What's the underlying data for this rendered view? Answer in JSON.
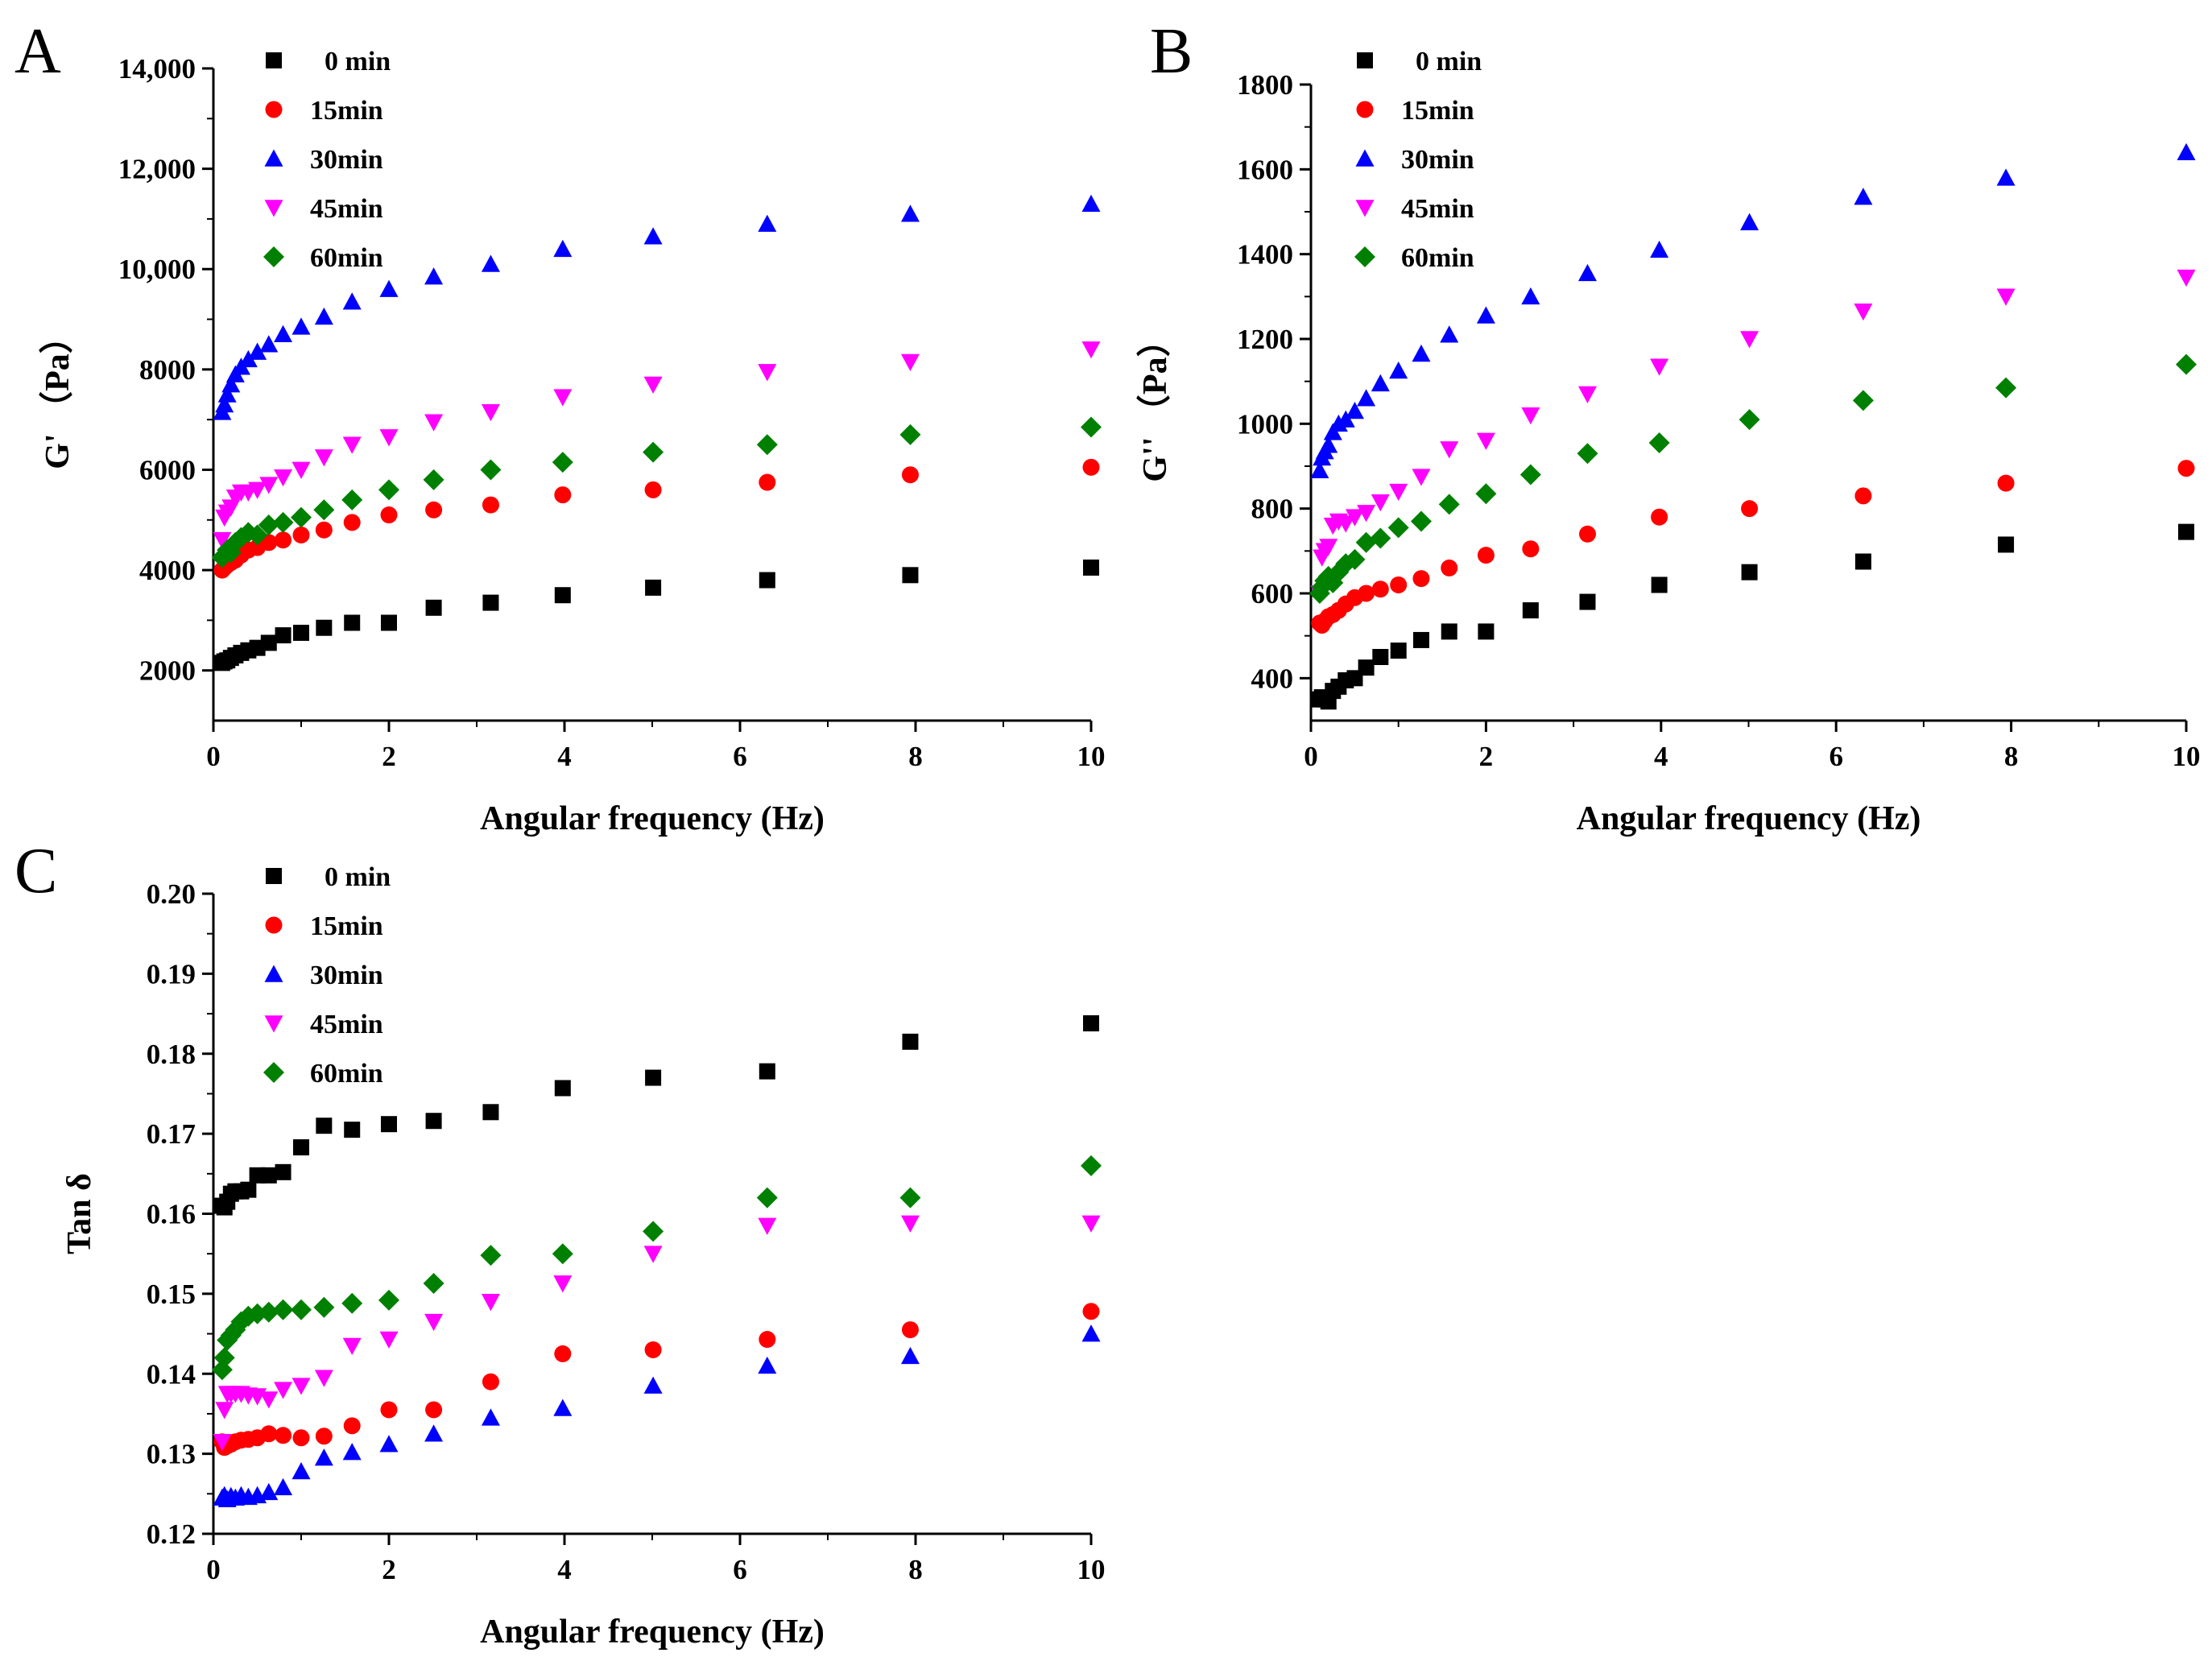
{
  "chart_data": [
    {
      "panel": "A",
      "type": "scatter",
      "xlabel": "Angular frequency (Hz)",
      "ylabel": "G'  （Pa）",
      "xlim": [
        0,
        10
      ],
      "ylim": [
        1000,
        14000
      ],
      "xticks": [
        0,
        2,
        4,
        6,
        8,
        10
      ],
      "yticks": [
        2000,
        4000,
        6000,
        8000,
        10000,
        12000,
        14000
      ],
      "ytick_labels": [
        "2000",
        "4000",
        "6000",
        "8000",
        "10,000",
        "12,000",
        "14,000"
      ],
      "legend": [
        "0 min",
        "15min",
        "30min",
        "45min",
        "60min"
      ],
      "x": [
        0.1,
        0.126,
        0.158,
        0.2,
        0.251,
        0.316,
        0.398,
        0.501,
        0.631,
        0.794,
        1,
        1.26,
        1.58,
        2,
        2.51,
        3.16,
        3.98,
        5.01,
        6.31,
        7.94,
        10
      ],
      "series": [
        {
          "name": "0 min",
          "marker": "square",
          "color": "#000000",
          "values": [
            2150,
            2180,
            2200,
            2250,
            2300,
            2350,
            2400,
            2450,
            2550,
            2700,
            2750,
            2850,
            2950,
            2950,
            3250,
            3350,
            3500,
            3650,
            3800,
            3900,
            4050
          ]
        },
        {
          "name": "15min",
          "marker": "circle",
          "color": "#ff0000",
          "values": [
            4000,
            4050,
            4100,
            4150,
            4200,
            4300,
            4400,
            4450,
            4550,
            4600,
            4700,
            4800,
            4950,
            5100,
            5200,
            5300,
            5500,
            5600,
            5750,
            5900,
            6050
          ]
        },
        {
          "name": "30min",
          "marker": "triangle-up",
          "color": "#0000ff",
          "values": [
            7150,
            7300,
            7500,
            7700,
            7900,
            8050,
            8200,
            8350,
            8500,
            8700,
            8850,
            9050,
            9350,
            9600,
            9850,
            10100,
            10400,
            10650,
            10900,
            11100,
            11300
          ]
        },
        {
          "name": "45min",
          "marker": "triangle-down",
          "color": "#ff00ff",
          "values": [
            4600,
            5050,
            5150,
            5250,
            5450,
            5550,
            5550,
            5600,
            5700,
            5850,
            6000,
            6250,
            6500,
            6650,
            6950,
            7150,
            7450,
            7700,
            7950,
            8150,
            8400
          ]
        },
        {
          "name": "60min",
          "marker": "diamond",
          "color": "#008000",
          "values": [
            4250,
            4300,
            4400,
            4350,
            4550,
            4650,
            4750,
            4700,
            4900,
            4950,
            5050,
            5200,
            5400,
            5600,
            5800,
            6000,
            6150,
            6350,
            6500,
            6700,
            6850
          ]
        }
      ]
    },
    {
      "panel": "B",
      "type": "scatter",
      "xlabel": "Angular frequency (Hz)",
      "ylabel": "G''  （Pa）",
      "xlim": [
        0,
        10
      ],
      "ylim": [
        300,
        1800
      ],
      "xticks": [
        0,
        2,
        4,
        6,
        8,
        10
      ],
      "yticks": [
        400,
        600,
        800,
        1000,
        1200,
        1400,
        1600,
        1800
      ],
      "ytick_labels": [
        "400",
        "600",
        "800",
        "1000",
        "1200",
        "1400",
        "1600",
        "1800"
      ],
      "legend": [
        "0 min",
        "15min",
        "30min",
        "45min",
        "60min"
      ],
      "x": [
        0.1,
        0.126,
        0.158,
        0.2,
        0.251,
        0.316,
        0.398,
        0.501,
        0.631,
        0.794,
        1,
        1.26,
        1.58,
        2,
        2.51,
        3.16,
        3.98,
        5.01,
        6.31,
        7.94,
        10
      ],
      "series": [
        {
          "name": "0 min",
          "marker": "square",
          "color": "#000000",
          "values": [
            350,
            355,
            350,
            345,
            370,
            380,
            395,
            400,
            425,
            450,
            465,
            490,
            510,
            510,
            560,
            580,
            620,
            650,
            675,
            715,
            745
          ]
        },
        {
          "name": "15min",
          "marker": "circle",
          "color": "#ff0000",
          "values": [
            530,
            525,
            535,
            545,
            550,
            560,
            575,
            590,
            600,
            610,
            620,
            635,
            660,
            690,
            705,
            740,
            780,
            800,
            830,
            860,
            895
          ]
        },
        {
          "name": "30min",
          "marker": "triangle-up",
          "color": "#0000ff",
          "values": [
            890,
            920,
            935,
            950,
            980,
            1000,
            1010,
            1030,
            1060,
            1095,
            1125,
            1165,
            1210,
            1255,
            1300,
            1355,
            1410,
            1475,
            1535,
            1580,
            1640
          ]
        },
        {
          "name": "45min",
          "marker": "triangle-down",
          "color": "#ff00ff",
          "values": [
            600,
            685,
            700,
            710,
            760,
            770,
            765,
            780,
            790,
            815,
            840,
            875,
            940,
            960,
            1020,
            1070,
            1135,
            1200,
            1265,
            1300,
            1345
          ]
        },
        {
          "name": "60min",
          "marker": "diamond",
          "color": "#008000",
          "values": [
            600,
            615,
            630,
            640,
            625,
            650,
            670,
            680,
            720,
            730,
            755,
            770,
            810,
            835,
            880,
            930,
            955,
            1010,
            1055,
            1085,
            1140
          ]
        }
      ]
    },
    {
      "panel": "C",
      "type": "scatter",
      "xlabel": "Angular frequency (Hz)",
      "ylabel": "Tan δ",
      "xlim": [
        0,
        10
      ],
      "ylim": [
        0.12,
        0.2
      ],
      "xticks": [
        0,
        2,
        4,
        6,
        8,
        10
      ],
      "yticks": [
        0.12,
        0.13,
        0.14,
        0.15,
        0.16,
        0.17,
        0.18,
        0.19,
        0.2
      ],
      "ytick_labels": [
        "0.12",
        "0.13",
        "0.14",
        "0.15",
        "0.16",
        "0.17",
        "0.18",
        "0.19",
        "0.20"
      ],
      "legend": [
        "0 min",
        "15min",
        "30min",
        "45min",
        "60min"
      ],
      "x": [
        0.1,
        0.126,
        0.158,
        0.2,
        0.251,
        0.316,
        0.398,
        0.501,
        0.631,
        0.794,
        1,
        1.26,
        1.58,
        2,
        2.51,
        3.16,
        3.98,
        5.01,
        6.31,
        7.94,
        10
      ],
      "series": [
        {
          "name": "0 min",
          "marker": "square",
          "color": "#000000",
          "values": [
            0.161,
            0.1608,
            0.1615,
            0.1625,
            0.1628,
            0.1628,
            0.163,
            0.1648,
            0.1648,
            0.1652,
            0.1683,
            0.171,
            0.1705,
            0.1712,
            0.1716,
            0.1727,
            0.1757,
            0.177,
            0.1778,
            0.1815,
            0.1838
          ]
        },
        {
          "name": "15min",
          "marker": "circle",
          "color": "#ff0000",
          "values": [
            0.1315,
            0.1308,
            0.131,
            0.1312,
            0.1315,
            0.1317,
            0.1318,
            0.132,
            0.1325,
            0.1323,
            0.132,
            0.1322,
            0.1335,
            0.1355,
            0.1355,
            0.139,
            0.1425,
            0.143,
            0.1443,
            0.1455,
            0.1478
          ]
        },
        {
          "name": "30min",
          "marker": "triangle-up",
          "color": "#0000ff",
          "values": [
            0.1245,
            0.1248,
            0.1243,
            0.1247,
            0.1245,
            0.1248,
            0.1246,
            0.1248,
            0.1252,
            0.1258,
            0.1278,
            0.1295,
            0.1302,
            0.1312,
            0.1325,
            0.1345,
            0.1357,
            0.1385,
            0.141,
            0.1422,
            0.145
          ]
        },
        {
          "name": "45min",
          "marker": "triangle-down",
          "color": "#ff00ff",
          "values": [
            0.1315,
            0.1355,
            0.1375,
            0.1375,
            0.1375,
            0.1375,
            0.1373,
            0.1372,
            0.1368,
            0.138,
            0.1385,
            0.1395,
            0.1435,
            0.1443,
            0.1465,
            0.149,
            0.1513,
            0.155,
            0.1585,
            0.1588,
            0.1588
          ]
        },
        {
          "name": "60min",
          "marker": "diamond",
          "color": "#008000",
          "values": [
            0.1405,
            0.142,
            0.1442,
            0.1448,
            0.1455,
            0.1465,
            0.1472,
            0.1475,
            0.1477,
            0.148,
            0.148,
            0.1483,
            0.1488,
            0.1492,
            0.1513,
            0.1548,
            0.155,
            0.1578,
            0.162,
            0.162,
            0.166
          ]
        }
      ]
    }
  ]
}
